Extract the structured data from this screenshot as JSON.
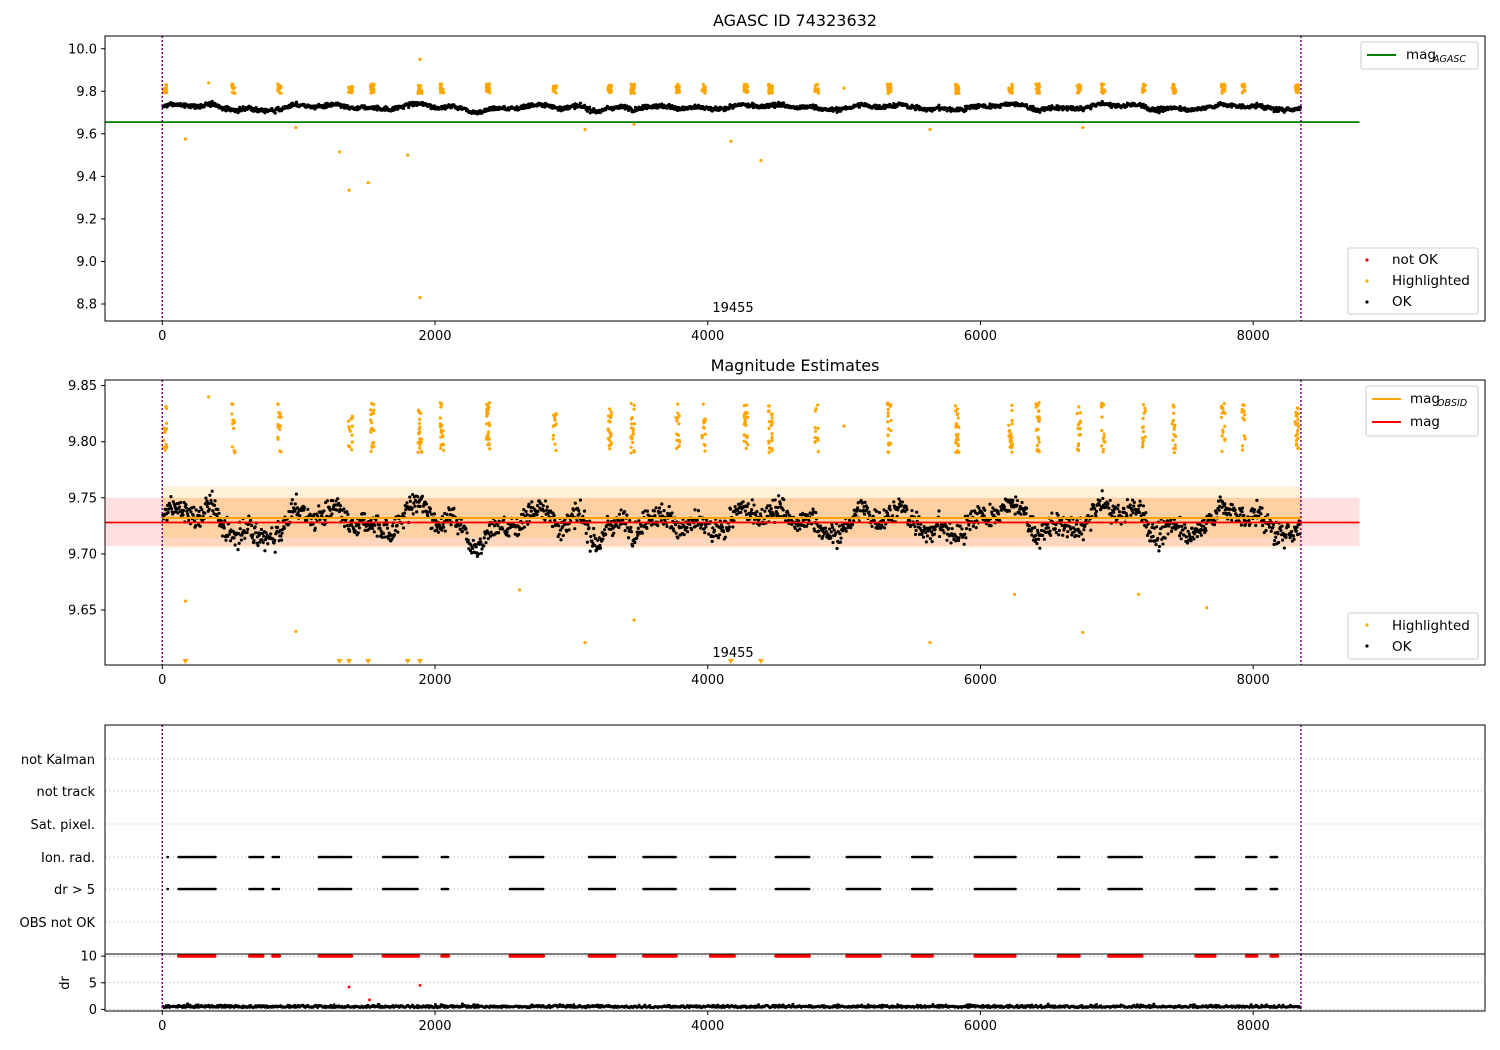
{
  "chart_data": [
    {
      "type": "scatter",
      "title": "AGASC ID 74323632",
      "xlim": [
        -420,
        9700
      ],
      "ylim": [
        8.72,
        10.06
      ],
      "x_ticks": [
        "0",
        "2000",
        "4000",
        "6000",
        "8000"
      ],
      "y_ticks": [
        "10.0",
        "9.8",
        "9.6",
        "9.4",
        "9.2",
        "9.0",
        "8.8"
      ],
      "annotation": "19455",
      "vlines": [
        0,
        8350
      ],
      "reference_lines": [
        {
          "name": "mag",
          "subscript": "AGASC",
          "value": 9.655,
          "x": [
            -420,
            8780
          ],
          "color": "#008000"
        }
      ],
      "series": [
        {
          "name": "not OK",
          "color": "#ff0000"
        },
        {
          "name": "Highlighted",
          "color": "#ffa500"
        },
        {
          "name": "OK",
          "color": "#000000"
        }
      ],
      "ok_band": {
        "center": 9.725,
        "half_width": 0.025
      },
      "highlighted_clusters_x": [
        20,
        520,
        860,
        1380,
        1540,
        1890,
        2050,
        2390,
        2880,
        3280,
        3450,
        3780,
        3970,
        4280,
        4460,
        4800,
        5330,
        5830,
        6220,
        6420,
        6720,
        6900,
        7200,
        7420,
        7780,
        7930,
        8320
      ],
      "highlighted_outliers": [
        [
          170,
          9.575
        ],
        [
          340,
          9.84
        ],
        [
          980,
          9.63
        ],
        [
          1300,
          9.515
        ],
        [
          1370,
          9.335
        ],
        [
          1510,
          9.37
        ],
        [
          1800,
          9.5
        ],
        [
          1890,
          8.83
        ],
        [
          1890,
          9.95
        ],
        [
          3100,
          9.62
        ],
        [
          3460,
          9.645
        ],
        [
          4170,
          9.565
        ],
        [
          4390,
          9.475
        ],
        [
          5630,
          9.62
        ],
        [
          6750,
          9.63
        ],
        [
          5000,
          9.815
        ]
      ]
    },
    {
      "type": "scatter",
      "title": "Magnitude Estimates",
      "xlim": [
        -420,
        9700
      ],
      "ylim": [
        9.601,
        9.855
      ],
      "x_ticks": [
        "0",
        "2000",
        "4000",
        "6000",
        "8000"
      ],
      "y_ticks": [
        "9.85",
        "9.80",
        "9.75",
        "9.70",
        "9.65"
      ],
      "annotation": "19455",
      "vlines": [
        0,
        8350
      ],
      "reference_lines": [
        {
          "name": "mag",
          "subscript": "OBSID",
          "value": 9.732,
          "color": "#ffa500"
        },
        {
          "name": "mag",
          "value": 9.728,
          "color": "#ff0000",
          "band": [
            9.707,
            9.75
          ]
        }
      ],
      "series": [
        {
          "name": "Highlighted",
          "color": "#ffa500"
        },
        {
          "name": "OK",
          "color": "#000000"
        }
      ],
      "below_range_markers_x": [
        170,
        1300,
        1370,
        1510,
        1800,
        1890,
        4170,
        4390
      ],
      "highlighted_outliers": [
        [
          170,
          9.658
        ],
        [
          980,
          9.631
        ],
        [
          2620,
          9.668
        ],
        [
          3100,
          9.621
        ],
        [
          3460,
          9.641
        ],
        [
          5630,
          9.621
        ],
        [
          6250,
          9.664
        ],
        [
          6750,
          9.63
        ],
        [
          7160,
          9.664
        ],
        [
          7660,
          9.652
        ],
        [
          340,
          9.84
        ],
        [
          5000,
          9.814
        ]
      ]
    },
    {
      "type": "scatter",
      "xlim": [
        -420,
        9700
      ],
      "x_ticks": [
        "0",
        "2000",
        "4000",
        "6000",
        "8000"
      ],
      "categories": [
        "not Kalman",
        "not track",
        "Sat. pixel.",
        "Ion. rad.",
        "dr > 5",
        "OBS not OK"
      ],
      "flag_segments_x": [
        [
          120,
          390
        ],
        [
          640,
          740
        ],
        [
          810,
          860
        ],
        [
          1150,
          1390
        ],
        [
          1620,
          1880
        ],
        [
          2050,
          2100
        ],
        [
          2550,
          2800
        ],
        [
          3130,
          3320
        ],
        [
          3530,
          3770
        ],
        [
          4020,
          4200
        ],
        [
          4500,
          4750
        ],
        [
          5020,
          5270
        ],
        [
          5500,
          5650
        ],
        [
          5960,
          6260
        ],
        [
          6570,
          6730
        ],
        [
          6940,
          7190
        ],
        [
          7580,
          7720
        ],
        [
          7950,
          8030
        ],
        [
          8130,
          8180
        ]
      ],
      "dr_panel": {
        "ylabel": "dr",
        "ylim": [
          -0.3,
          10.4
        ],
        "y_ticks": [
          "10",
          "5",
          "0"
        ],
        "clip_value": 10,
        "outliers": [
          [
            1370,
            4.2
          ],
          [
            1890,
            4.5
          ],
          [
            1520,
            1.8
          ]
        ]
      }
    }
  ]
}
